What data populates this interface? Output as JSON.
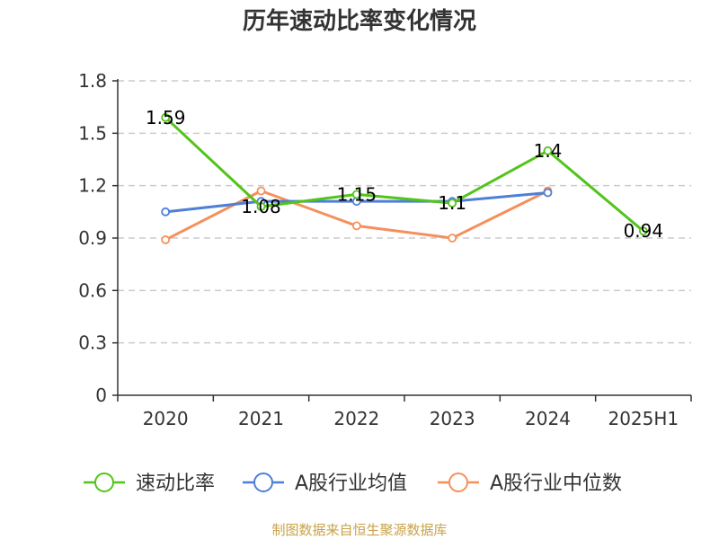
{
  "chart_data": {
    "type": "line",
    "title": "历年速动比率变化情况",
    "categories": [
      "2020",
      "2021",
      "2022",
      "2023",
      "2024",
      "2025H1"
    ],
    "ylim": [
      0,
      1.8
    ],
    "yticks": [
      "0",
      "0.3",
      "0.6",
      "0.9",
      "1.2",
      "1.5",
      "1.8"
    ],
    "grid": true,
    "legend_position": "bottom",
    "series": [
      {
        "name": "速动比率",
        "color": "#52c41a",
        "values": [
          1.59,
          1.08,
          1.15,
          1.1,
          1.4,
          0.94
        ],
        "labels": [
          "1.59",
          "1.08",
          "1.15",
          "1.1",
          "1.4",
          "0.94"
        ]
      },
      {
        "name": "A股行业均值",
        "color": "#4f7fd6",
        "values": [
          1.05,
          1.11,
          1.11,
          1.11,
          1.16,
          null
        ]
      },
      {
        "name": "A股行业中位数",
        "color": "#f5905c",
        "values": [
          0.89,
          1.17,
          0.97,
          0.9,
          1.17,
          null
        ]
      }
    ],
    "source": "制图数据来自恒生聚源数据库"
  }
}
